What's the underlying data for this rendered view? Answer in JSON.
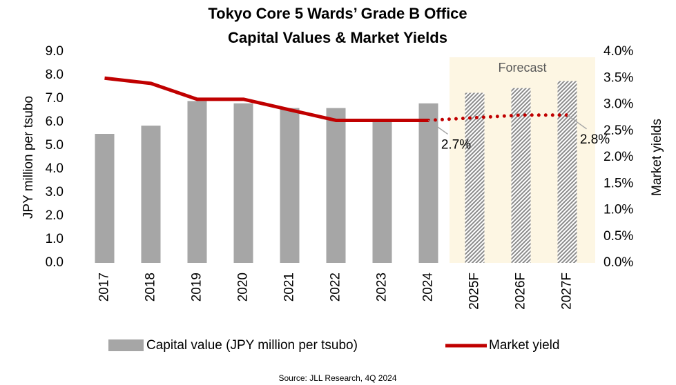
{
  "chart_data": {
    "type": "bar",
    "title": [
      "Tokyo Core 5 Wards’ Grade B Office",
      "Capital Values & Market Yields"
    ],
    "categories": [
      "2017",
      "2018",
      "2019",
      "2020",
      "2021",
      "2022",
      "2023",
      "2024",
      "2025F",
      "2026F",
      "2027F"
    ],
    "series": [
      {
        "name": "Capital value (JPY million per tsubo)",
        "color": "#a6a6a6",
        "type": "bar",
        "values": [
          5.5,
          5.85,
          6.9,
          6.8,
          6.6,
          6.6,
          6.1,
          6.8,
          7.25,
          7.45,
          7.75
        ]
      },
      {
        "name": "Market yield",
        "color": "#c00000",
        "type": "line",
        "axis": "y2",
        "values": [
          3.5,
          3.4,
          3.1,
          3.1,
          2.9,
          2.7,
          2.7,
          2.7,
          2.75,
          2.8,
          2.8
        ],
        "value_labels": [
          null,
          null,
          null,
          null,
          null,
          null,
          null,
          "2.7%",
          null,
          null,
          "2.8%"
        ]
      }
    ],
    "forecast": {
      "label": "Forecast",
      "start": 8
    },
    "ylabel": "JPY million per tsubo",
    "y2label": "Market yields",
    "ylim": [
      0,
      9
    ],
    "yticks": [
      {
        "value": 0,
        "label": "0.0"
      },
      {
        "value": 1,
        "label": "1.0"
      },
      {
        "value": 2,
        "label": "2.0"
      },
      {
        "value": 3,
        "label": "3.0"
      },
      {
        "value": 4,
        "label": "4.0"
      },
      {
        "value": 5,
        "label": "5.0"
      },
      {
        "value": 6,
        "label": "6.0"
      },
      {
        "value": 7,
        "label": "7.0"
      },
      {
        "value": 8,
        "label": "8.0"
      },
      {
        "value": 9,
        "label": "9.0"
      }
    ],
    "y2lim": [
      0,
      4
    ],
    "y2ticks": [
      {
        "value": 0,
        "label": "0.0%"
      },
      {
        "value": 0.5,
        "label": "0.5%"
      },
      {
        "value": 1,
        "label": "1.0%"
      },
      {
        "value": 1.5,
        "label": "1.5%"
      },
      {
        "value": 2,
        "label": "2.0%"
      },
      {
        "value": 2.5,
        "label": "2.5%"
      },
      {
        "value": 3,
        "label": "3.0%"
      },
      {
        "value": 3.5,
        "label": "3.5%"
      },
      {
        "value": 4,
        "label": "4.0%"
      }
    ],
    "source": "Source: JLL Research, 4Q 2024"
  }
}
